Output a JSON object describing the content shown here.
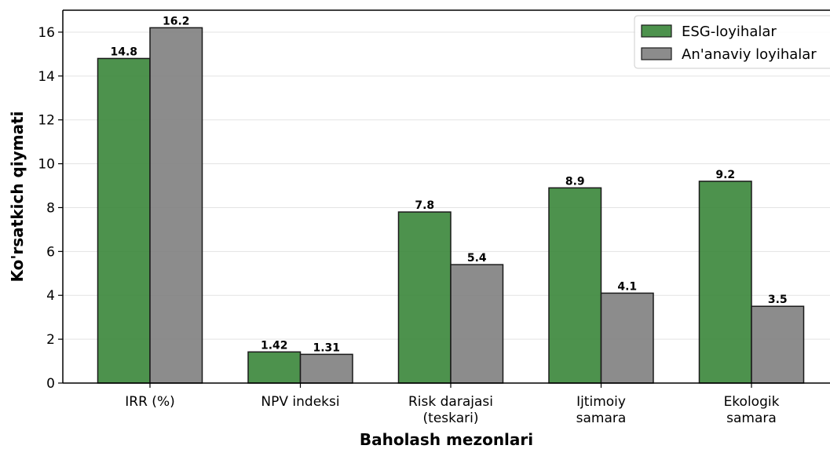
{
  "chart_data": {
    "type": "bar",
    "title": "",
    "xlabel": "Baholash mezonlari",
    "ylabel": "Ko'rsatkich qiymati",
    "categories": [
      [
        "IRR (%)"
      ],
      [
        "NPV indeksi"
      ],
      [
        "Risk darajasi",
        "(teskari)"
      ],
      [
        "Ijtimoiy",
        "samara"
      ],
      [
        "Ekologik",
        "samara"
      ]
    ],
    "series": [
      {
        "name": "ESG-loyihalar",
        "color": "#3a863a",
        "values": [
          14.8,
          1.42,
          7.8,
          8.9,
          9.2
        ],
        "labels": [
          "14.8",
          "1.42",
          "7.8",
          "8.9",
          "9.2"
        ]
      },
      {
        "name": "An'anaviy loyihalar",
        "color": "#808080",
        "values": [
          16.2,
          1.31,
          5.4,
          4.1,
          3.5
        ],
        "labels": [
          "16.2",
          "1.31",
          "5.4",
          "4.1",
          "3.5"
        ]
      }
    ],
    "ylim": [
      0,
      17
    ],
    "yticks": [
      0,
      2,
      4,
      6,
      8,
      10,
      12,
      14,
      16
    ],
    "grid": "y",
    "legend": "top-right"
  }
}
